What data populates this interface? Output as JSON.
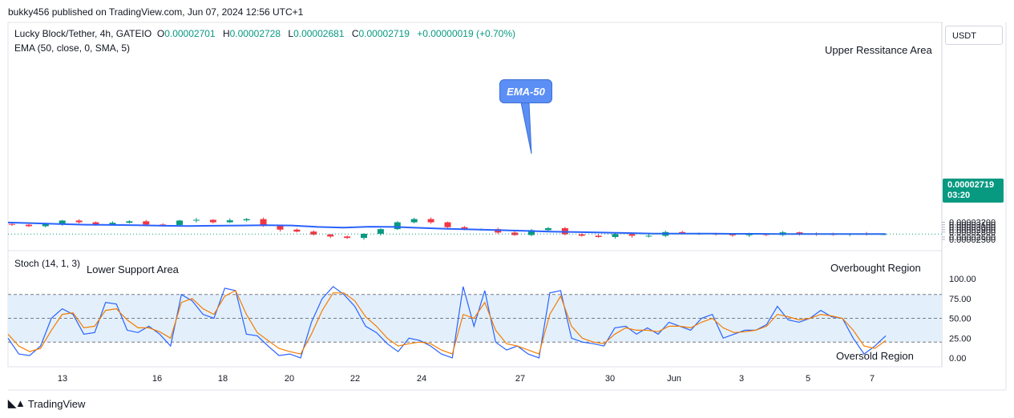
{
  "header": {
    "publisher": "bukky456 published on TradingView.com, Jun 07, 2024 12:56 UTC+1"
  },
  "legend": {
    "symbol": "Lucky Block/Tether, 4h, GATEIO",
    "open_label": "O",
    "open": "0.00002701",
    "high_label": "H",
    "high": "0.00002728",
    "low_label": "L",
    "low": "0.00002681",
    "close_label": "C",
    "close": "0.00002719",
    "change": "+0.00000019 (+0.70%)",
    "ema": "EMA (50, close, 0, SMA, 5)",
    "stoch": "Stoch (14, 1, 3)"
  },
  "annotations": {
    "upper": "Upper Ressitance Area",
    "lower": "Lower Support Area",
    "overbought": "Overbought Region",
    "oversold": "Oversold Region",
    "ema_callout": "EMA-50"
  },
  "price_scale": {
    "currency": "USDT",
    "last_price": "0.00002719",
    "countdown": "03:20"
  },
  "footer": {
    "logo_text": "TradingView",
    "logo_icon": "tv-logo-icon"
  },
  "colors": {
    "up": "#089981",
    "down": "#f23645",
    "ema": "#2962ff",
    "stoch_k": "#2962ff",
    "stoch_d": "#f57c00",
    "band": "#e3f0fc"
  },
  "chart_data": [
    {
      "type": "candlestick",
      "title": "Lucky Block/Tether, 4h, GATEIO",
      "x_ticks": [
        "13",
        "16",
        "18",
        "20",
        "22",
        "24",
        "27",
        "30",
        "Jun",
        "3",
        "5",
        "7"
      ],
      "y_ticks": [
        "0.00003200",
        "0.00003100",
        "0.00003000",
        "0.00002900",
        "0.00002800",
        "0.00002600",
        "0.00002500"
      ],
      "ylim": [
        2.45e-05,
        3.33e-05
      ],
      "last_close": 2.719e-05,
      "close_path": [
        3.1,
        3.04,
        3.13,
        3.27,
        3.2,
        3.12,
        3.18,
        3.24,
        3.11,
        3.09,
        3.27,
        3.3,
        3.2,
        3.28,
        3.33,
        3.05,
        2.9,
        2.82,
        2.7,
        2.62,
        2.56,
        2.73,
        2.92,
        3.2,
        3.33,
        3.2,
        3.0,
        2.9,
        2.92,
        2.78,
        2.68,
        2.88,
        2.96,
        2.71,
        2.65,
        2.6,
        2.72,
        2.65,
        2.65,
        2.8,
        2.72,
        2.74,
        2.7,
        2.67,
        2.74,
        2.68,
        2.79,
        2.74,
        2.72,
        2.7,
        2.73,
        2.7,
        2.72
      ]
    },
    {
      "type": "line",
      "name": "EMA (50, close, 0, SMA, 5)",
      "path": [
        3.19,
        3.16,
        3.13,
        3.1,
        3.09,
        3.08,
        3.06,
        3.05,
        3.06,
        3.07,
        3.08,
        3.07,
        3.01,
        2.98,
        3.02,
        3.01,
        2.97,
        2.93,
        2.91,
        2.88,
        2.85,
        2.82,
        2.8,
        2.78,
        2.76,
        2.74,
        2.74,
        2.74,
        2.73,
        2.73,
        2.72,
        2.72,
        2.72,
        2.72,
        2.72
      ]
    },
    {
      "type": "line",
      "name": "Stoch (14, 1, 3)",
      "y_ticks": [
        "100.00",
        "75.00",
        "50.00",
        "25.00",
        "0.00"
      ],
      "ylim": [
        0,
        100
      ],
      "bands": {
        "upper": 80,
        "middle": 50,
        "lower": 20
      },
      "series": [
        {
          "name": "%K",
          "values": [
            25,
            5,
            3,
            15,
            50,
            62,
            55,
            30,
            32,
            70,
            68,
            35,
            32,
            40,
            30,
            15,
            80,
            72,
            55,
            50,
            88,
            85,
            30,
            28,
            15,
            3,
            5,
            0,
            45,
            75,
            90,
            80,
            65,
            40,
            32,
            18,
            8,
            25,
            22,
            15,
            5,
            0,
            90,
            40,
            85,
            20,
            10,
            15,
            5,
            0,
            82,
            85,
            25,
            20,
            18,
            15,
            38,
            40,
            30,
            38,
            30,
            45,
            40,
            35,
            50,
            55,
            25,
            30,
            35,
            35,
            42,
            65,
            48,
            45,
            50,
            60,
            52,
            50,
            25,
            5,
            15,
            28
          ]
        },
        {
          "name": "%D",
          "values": [
            30,
            15,
            8,
            12,
            35,
            55,
            57,
            38,
            40,
            60,
            62,
            48,
            38,
            38,
            33,
            25,
            70,
            75,
            62,
            55,
            78,
            85,
            55,
            32,
            22,
            12,
            8,
            5,
            30,
            60,
            82,
            82,
            72,
            52,
            40,
            25,
            15,
            18,
            20,
            18,
            10,
            5,
            55,
            50,
            70,
            35,
            18,
            15,
            10,
            5,
            55,
            78,
            40,
            25,
            20,
            18,
            30,
            38,
            35,
            35,
            33,
            40,
            40,
            38,
            45,
            50,
            38,
            32,
            33,
            35,
            40,
            55,
            52,
            48,
            50,
            55,
            53,
            50,
            35,
            15,
            12,
            22
          ]
        }
      ]
    }
  ]
}
